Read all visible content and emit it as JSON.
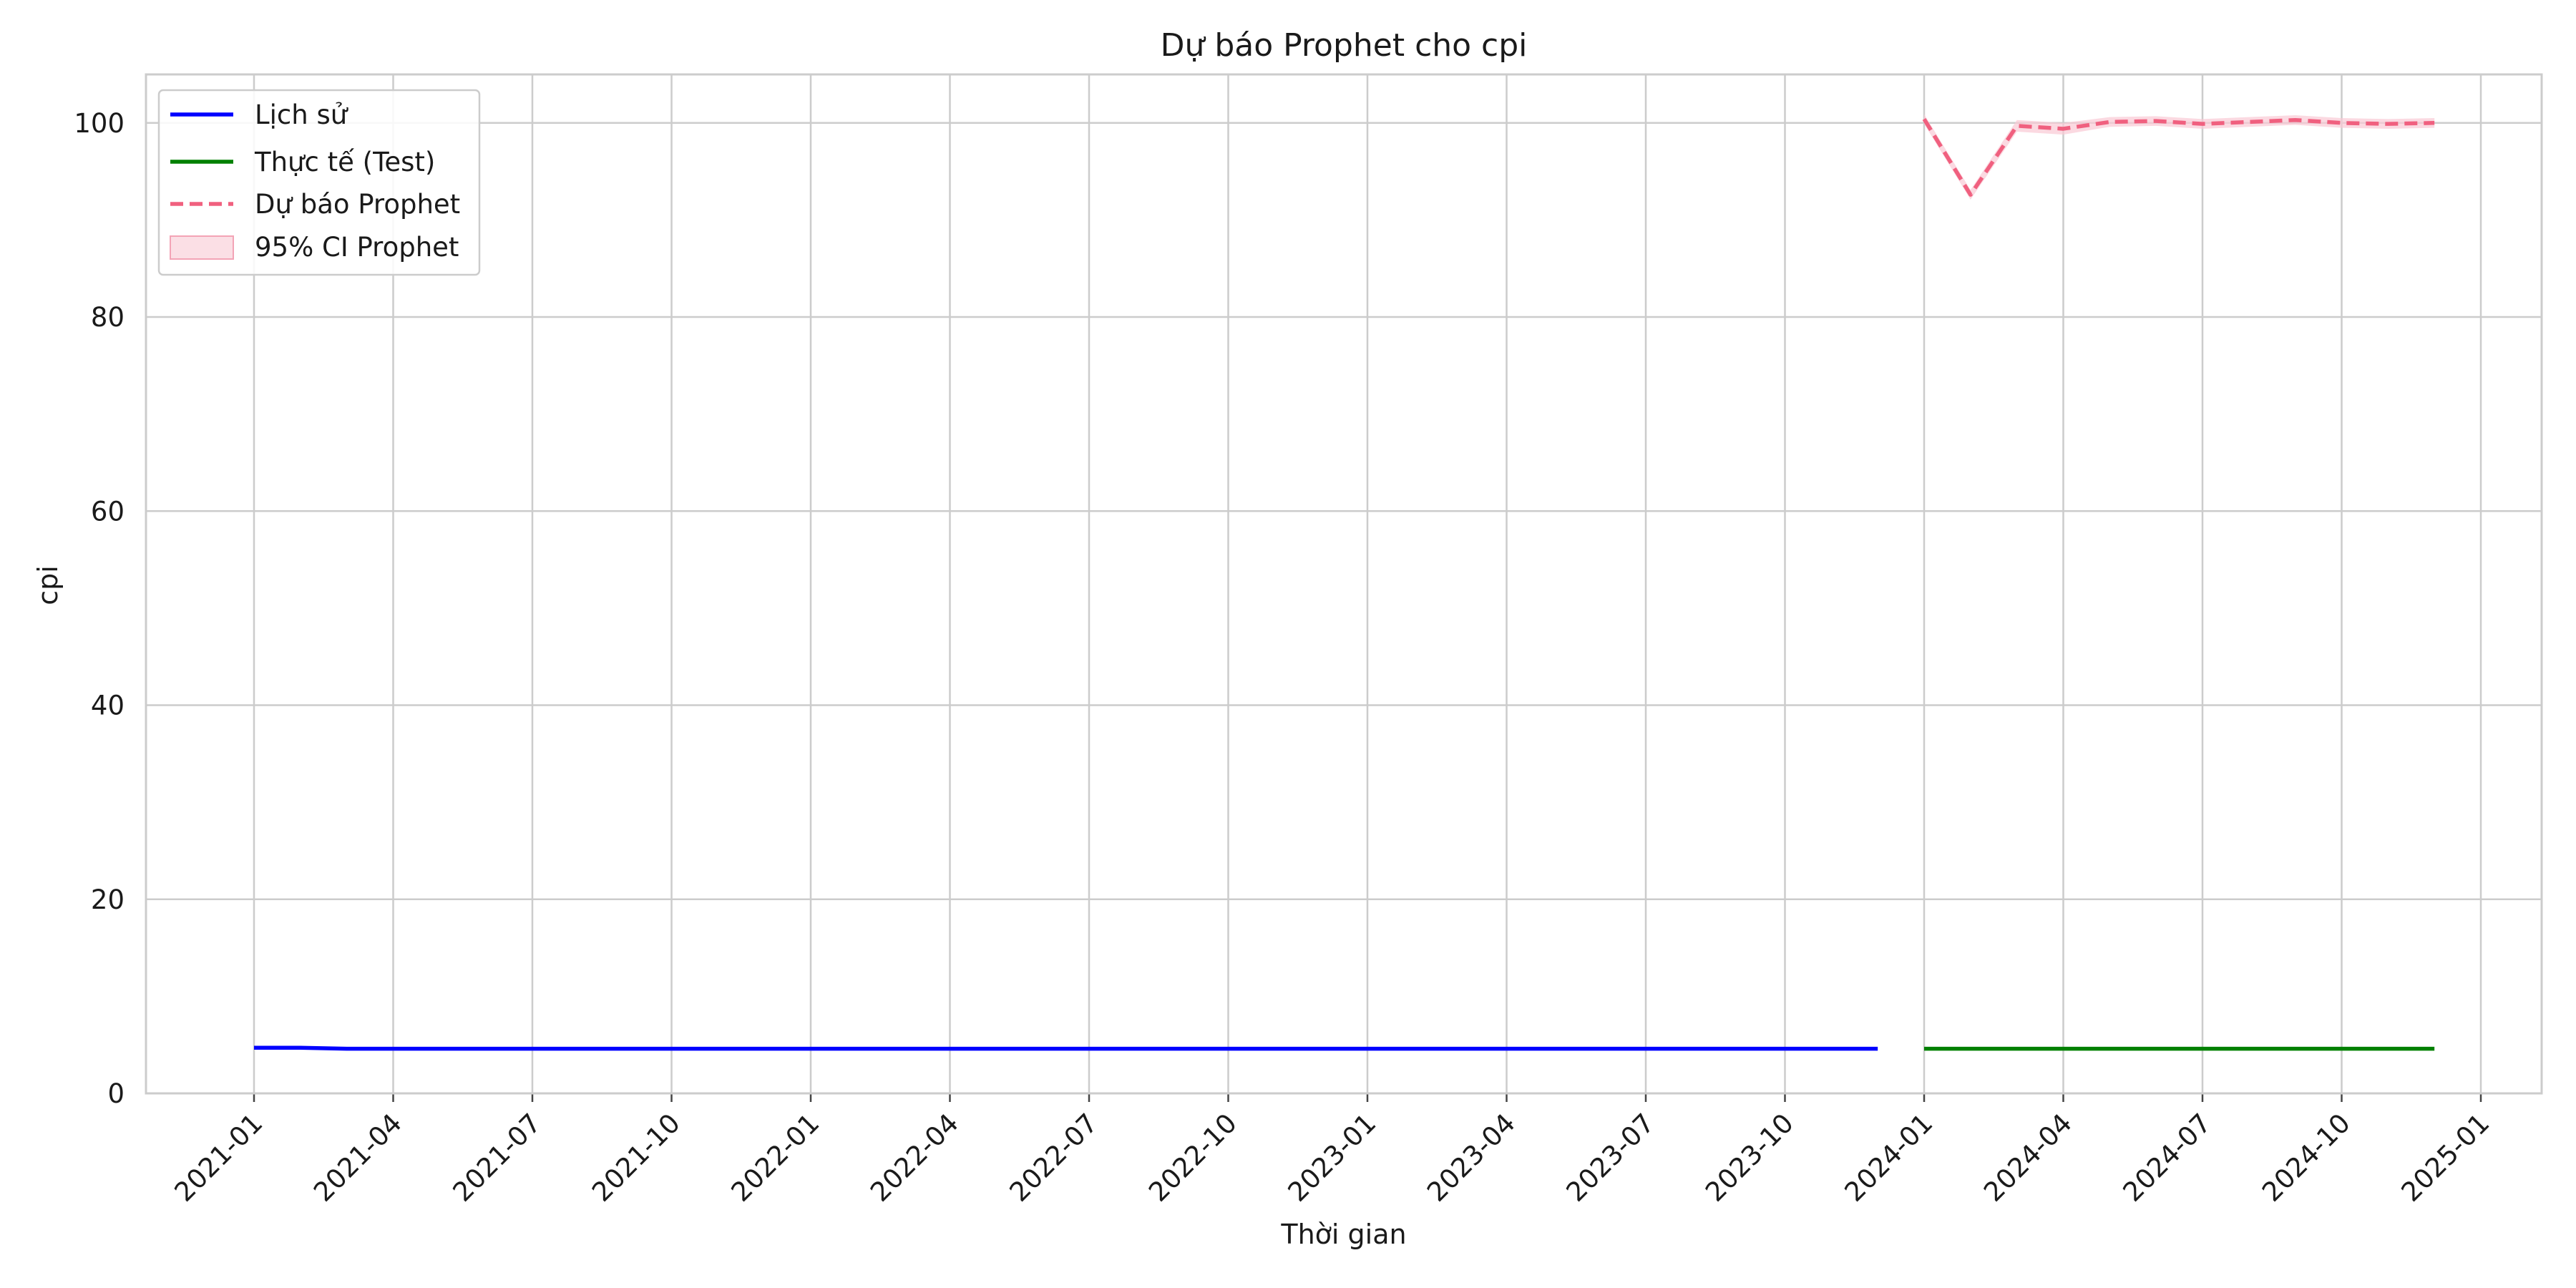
{
  "chart_data": {
    "type": "line",
    "title": "Dự báo Prophet cho cpi",
    "xlabel": "Thời gian",
    "ylabel": "cpi",
    "ylim": [
      0,
      105
    ],
    "y_ticks": [
      0,
      20,
      40,
      60,
      80,
      100
    ],
    "x_ticks": [
      "2021-01",
      "2021-04",
      "2021-07",
      "2021-10",
      "2022-01",
      "2022-04",
      "2022-07",
      "2022-10",
      "2023-01",
      "2023-04",
      "2023-07",
      "2023-10",
      "2024-01",
      "2024-04",
      "2024-07",
      "2024-10",
      "2025-01"
    ],
    "grid": true,
    "legend_position": "top-left",
    "series": [
      {
        "name": "Lịch sử",
        "color": "#0000ff",
        "style": "solid",
        "x": [
          "2021-01",
          "2021-02",
          "2021-03",
          "2021-04",
          "2021-05",
          "2021-06",
          "2021-07",
          "2021-08",
          "2021-09",
          "2021-10",
          "2021-11",
          "2021-12",
          "2022-01",
          "2022-02",
          "2022-03",
          "2022-04",
          "2022-05",
          "2022-06",
          "2022-07",
          "2022-08",
          "2022-09",
          "2022-10",
          "2022-11",
          "2022-12",
          "2023-01",
          "2023-02",
          "2023-03",
          "2023-04",
          "2023-05",
          "2023-06",
          "2023-07",
          "2023-08",
          "2023-09",
          "2023-10",
          "2023-11",
          "2023-12"
        ],
        "values": [
          4.7,
          4.7,
          4.6,
          4.6,
          4.6,
          4.6,
          4.6,
          4.6,
          4.6,
          4.6,
          4.6,
          4.6,
          4.6,
          4.6,
          4.6,
          4.6,
          4.6,
          4.6,
          4.6,
          4.6,
          4.6,
          4.6,
          4.6,
          4.6,
          4.6,
          4.6,
          4.6,
          4.6,
          4.6,
          4.6,
          4.6,
          4.6,
          4.6,
          4.6,
          4.6,
          4.6
        ]
      },
      {
        "name": "Thực tế (Test)",
        "color": "#008000",
        "style": "solid",
        "x": [
          "2024-01",
          "2024-02",
          "2024-03",
          "2024-04",
          "2024-05",
          "2024-06",
          "2024-07",
          "2024-08",
          "2024-09",
          "2024-10",
          "2024-11",
          "2024-12"
        ],
        "values": [
          4.6,
          4.6,
          4.6,
          4.6,
          4.6,
          4.6,
          4.6,
          4.6,
          4.6,
          4.6,
          4.6,
          4.6
        ]
      },
      {
        "name": "Dự báo Prophet",
        "color": "#f0607f",
        "style": "dashed",
        "x": [
          "2024-01",
          "2024-02",
          "2024-03",
          "2024-04",
          "2024-05",
          "2024-06",
          "2024-07",
          "2024-08",
          "2024-09",
          "2024-10",
          "2024-11",
          "2024-12"
        ],
        "values": [
          100.4,
          92.6,
          99.7,
          99.4,
          100.1,
          100.2,
          99.9,
          100.1,
          100.3,
          100.0,
          99.9,
          100.0
        ],
        "ci_name": "95% CI Prophet",
        "ci_color": "#f9c9d4",
        "ci_lower": [
          99.9,
          92.1,
          99.1,
          98.8,
          99.6,
          99.7,
          99.4,
          99.6,
          99.8,
          99.5,
          99.4,
          99.5
        ],
        "ci_upper": [
          100.9,
          93.1,
          100.3,
          100.0,
          100.6,
          100.7,
          100.4,
          100.6,
          100.8,
          100.5,
          100.4,
          100.5
        ]
      }
    ]
  }
}
